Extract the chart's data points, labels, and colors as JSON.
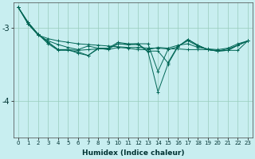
{
  "xlabel": "Humidex (Indice chaleur)",
  "background_color": "#c8eef0",
  "grid_color": "#98ccbb",
  "line_color": "#006655",
  "ylim": [
    -4.5,
    -2.65
  ],
  "xlim": [
    -0.5,
    23.5
  ],
  "yticks": [
    -4,
    -3
  ],
  "xticks": [
    0,
    1,
    2,
    3,
    4,
    5,
    6,
    7,
    8,
    9,
    10,
    11,
    12,
    13,
    14,
    15,
    16,
    17,
    18,
    19,
    20,
    21,
    22,
    23
  ],
  "lines": [
    [
      -2.72,
      -2.95,
      -3.1,
      -3.15,
      -3.18,
      -3.2,
      -3.22,
      -3.23,
      -3.24,
      -3.25,
      -3.26,
      -3.27,
      -3.27,
      -3.28,
      -3.28,
      -3.29,
      -3.29,
      -3.3,
      -3.3,
      -3.3,
      -3.31,
      -3.31,
      -3.31,
      -3.18
    ],
    [
      -2.72,
      -2.95,
      -3.1,
      -3.18,
      -3.23,
      -3.27,
      -3.3,
      -3.25,
      -3.28,
      -3.3,
      -3.27,
      -3.28,
      -3.3,
      -3.3,
      -3.27,
      -3.28,
      -3.24,
      -3.22,
      -3.27,
      -3.29,
      -3.3,
      -3.28,
      -3.22,
      -3.18
    ],
    [
      -2.72,
      -2.93,
      -3.09,
      -3.2,
      -3.3,
      -3.3,
      -3.35,
      -3.38,
      -3.28,
      -3.28,
      -3.2,
      -3.22,
      -3.22,
      -3.32,
      -3.32,
      -3.48,
      -3.25,
      -3.18,
      -3.25,
      -3.3,
      -3.32,
      -3.29,
      -3.24,
      -3.18
    ],
    [
      -2.72,
      -2.93,
      -3.09,
      -3.2,
      -3.3,
      -3.3,
      -3.31,
      -3.3,
      -3.29,
      -3.29,
      -3.22,
      -3.23,
      -3.22,
      -3.22,
      -3.6,
      -3.3,
      -3.26,
      -3.16,
      -3.24,
      -3.3,
      -3.32,
      -3.31,
      -3.24,
      -3.18
    ],
    [
      -2.72,
      -2.93,
      -3.09,
      -3.22,
      -3.31,
      -3.31,
      -3.33,
      -3.38,
      -3.29,
      -3.29,
      -3.22,
      -3.23,
      -3.23,
      -3.33,
      -3.88,
      -3.5,
      -3.26,
      -3.16,
      -3.24,
      -3.3,
      -3.32,
      -3.31,
      -3.24,
      -3.18
    ]
  ]
}
